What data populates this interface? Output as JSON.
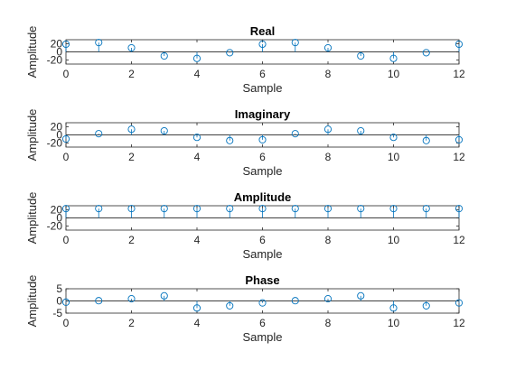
{
  "figure": {
    "background": "#ffffff",
    "marker_color": "#0072bd",
    "axis_color": "#262626"
  },
  "chart_data": [
    {
      "type": "stem",
      "title": "Real",
      "xlabel": "Sample",
      "ylabel": "Amplitude",
      "xlim": [
        0,
        12
      ],
      "ylim": [
        -30,
        30
      ],
      "xticks": [
        0,
        2,
        4,
        6,
        8,
        10,
        12
      ],
      "yticks": [
        {
          "value": 20,
          "label": "20"
        },
        {
          "value": 0,
          "label": "0"
        },
        {
          "value": -20,
          "label": "-20"
        }
      ],
      "x": [
        0,
        1,
        2,
        3,
        4,
        5,
        6,
        7,
        8,
        9,
        10,
        11,
        12
      ],
      "y": [
        19,
        23,
        10,
        -10,
        -16,
        -2,
        19,
        23,
        10,
        -10,
        -16,
        -2,
        19
      ]
    },
    {
      "type": "stem",
      "title": "Imaginary",
      "xlabel": "Sample",
      "ylabel": "Amplitude",
      "xlim": [
        0,
        12
      ],
      "ylim": [
        -30,
        30
      ],
      "xticks": [
        0,
        2,
        4,
        6,
        8,
        10,
        12
      ],
      "yticks": [
        {
          "value": 20,
          "label": "20"
        },
        {
          "value": 0,
          "label": "0"
        },
        {
          "value": -20,
          "label": "-20"
        }
      ],
      "x": [
        0,
        1,
        2,
        3,
        4,
        5,
        6,
        7,
        8,
        9,
        10,
        11,
        12
      ],
      "y": [
        -10,
        3,
        14,
        10,
        -6,
        -14,
        -12,
        3,
        14,
        10,
        -6,
        -14,
        -12
      ]
    },
    {
      "type": "stem",
      "title": "Amplitude",
      "xlabel": "Sample",
      "ylabel": "Amplitude",
      "xlim": [
        0,
        12
      ],
      "ylim": [
        -30,
        30
      ],
      "xticks": [
        0,
        2,
        4,
        6,
        8,
        10,
        12
      ],
      "yticks": [
        {
          "value": 20,
          "label": "20"
        },
        {
          "value": 0,
          "label": "0"
        },
        {
          "value": -20,
          "label": "-20"
        }
      ],
      "x": [
        0,
        1,
        2,
        3,
        4,
        5,
        6,
        7,
        8,
        9,
        10,
        11,
        12
      ],
      "y": [
        23,
        23,
        23,
        23,
        23,
        23,
        23,
        23,
        23,
        23,
        23,
        23,
        23
      ]
    },
    {
      "type": "stem",
      "title": "Phase",
      "xlabel": "Sample",
      "ylabel": "Amplitude",
      "xlim": [
        0,
        12
      ],
      "ylim": [
        -5,
        5
      ],
      "xticks": [
        0,
        2,
        4,
        6,
        8,
        10,
        12
      ],
      "yticks": [
        {
          "value": 5,
          "label": "5"
        },
        {
          "value": 0,
          "label": "0"
        },
        {
          "value": -5,
          "label": "-5"
        }
      ],
      "x": [
        0,
        1,
        2,
        3,
        4,
        5,
        6,
        7,
        8,
        9,
        10,
        11,
        12
      ],
      "y": [
        -0.5,
        0.1,
        0.9,
        2.1,
        -2.9,
        -2.0,
        -0.8,
        0.1,
        0.9,
        2.1,
        -2.9,
        -2.0,
        -0.8
      ]
    }
  ]
}
